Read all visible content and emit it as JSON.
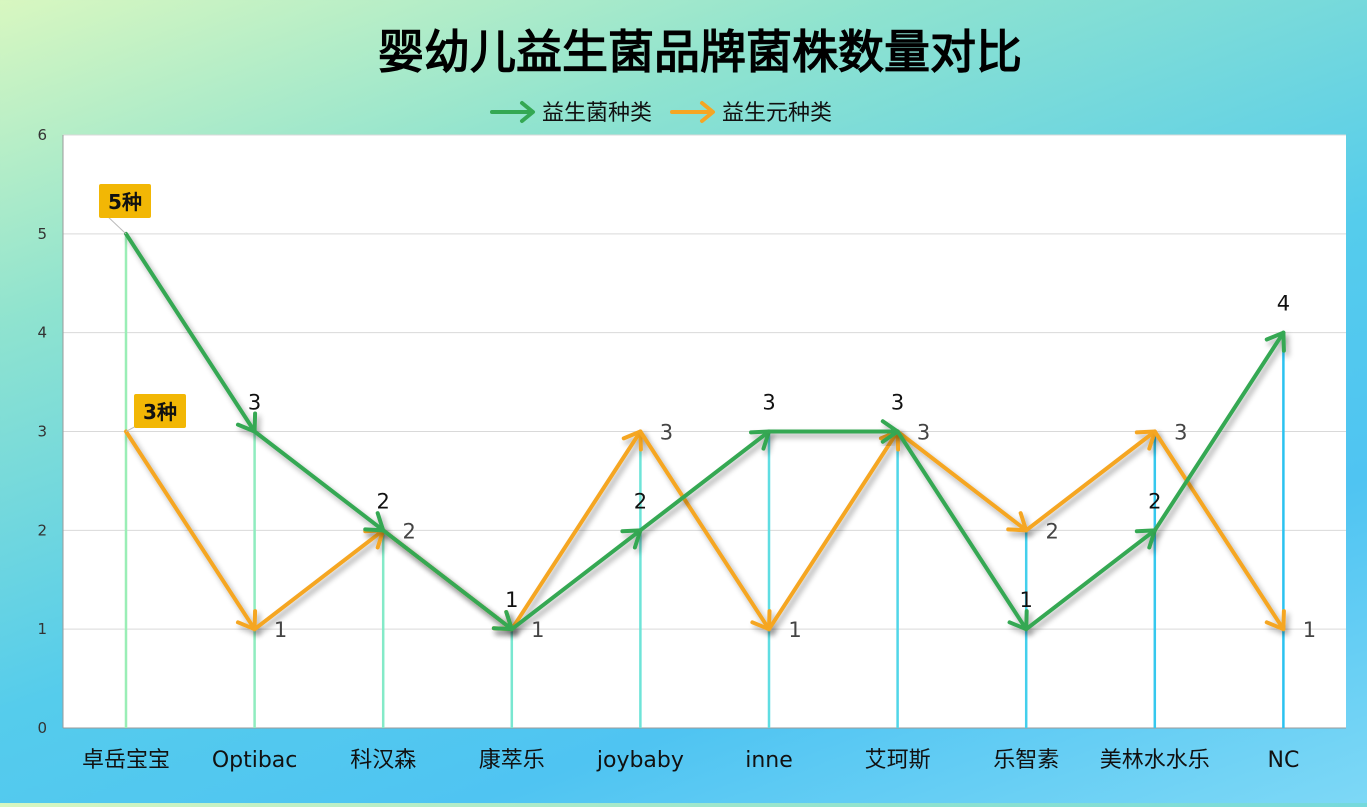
{
  "chart_data": {
    "type": "line",
    "title": "婴幼儿益生菌品牌菌株数量对比",
    "categories": [
      "卓岳宝宝",
      "Optibac",
      "科汉森",
      "康萃乐",
      "joybaby",
      "inne",
      "艾珂斯",
      "乐智素",
      "美林水水乐",
      "NC"
    ],
    "series": [
      {
        "name": "益生菌种类",
        "values": [
          5,
          3,
          2,
          1,
          2,
          3,
          3,
          1,
          2,
          4
        ],
        "color": "#34a853"
      },
      {
        "name": "益生元种类",
        "values": [
          3,
          1,
          2,
          1,
          3,
          1,
          3,
          2,
          3,
          1
        ],
        "color": "#f5a623"
      }
    ],
    "ylim": [
      0,
      6
    ],
    "yticks": [
      "0",
      "1",
      "2",
      "3",
      "4",
      "5",
      "6"
    ],
    "xlabel": "",
    "ylabel": "",
    "grid": true,
    "legend_position": "top",
    "annotations": [
      {
        "text": "5种",
        "category": "卓岳宝宝",
        "value": 5
      },
      {
        "text": "3种",
        "category": "卓岳宝宝",
        "value": 3
      }
    ],
    "colors": {
      "plot_background": "#ffffff",
      "gridline": "#d9d9d9",
      "annotation_box": "#f2b705",
      "drop_lines": [
        "#8ee8b0",
        "#7fe6c2",
        "#6ee2d3",
        "#5fdce0",
        "#4fd5ea"
      ]
    }
  }
}
